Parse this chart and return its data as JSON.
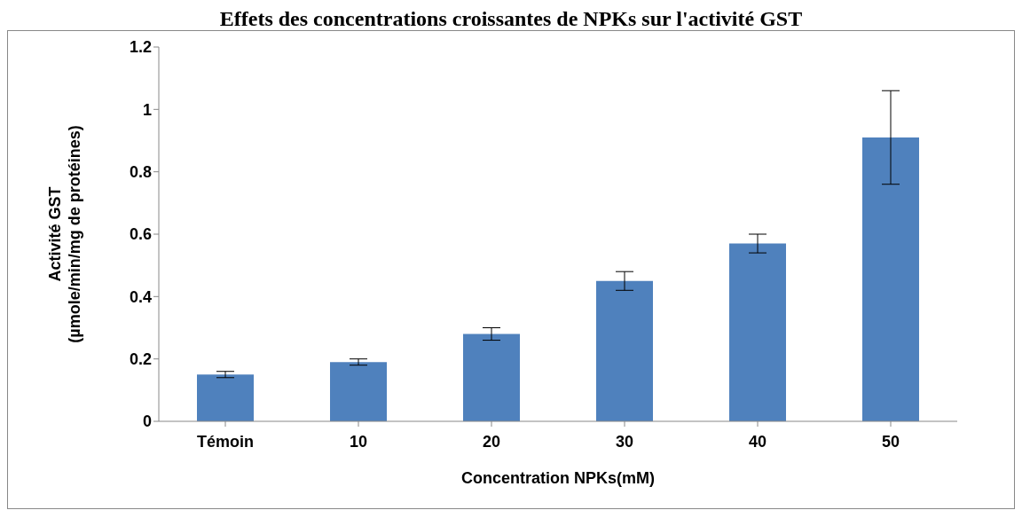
{
  "chart_data": {
    "type": "bar",
    "title": "Effets des  concentrations croissantes de NPKs sur l'activité  GST",
    "xlabel": "Concentration NPKs(mM)",
    "ylabel": "Activité GST\n(µmole/min/mg de protéines)",
    "categories": [
      "Témoin",
      "10",
      "20",
      "30",
      "40",
      "50"
    ],
    "values": [
      0.15,
      0.19,
      0.28,
      0.45,
      0.57,
      0.91
    ],
    "errors": [
      0.01,
      0.01,
      0.02,
      0.03,
      0.03,
      0.15
    ],
    "color": "#4f81bd",
    "ylim": [
      0,
      1.2
    ],
    "yticks": [
      0,
      0.2,
      0.4,
      0.6,
      0.8,
      1,
      1.2
    ],
    "grid": false,
    "legend": false
  }
}
